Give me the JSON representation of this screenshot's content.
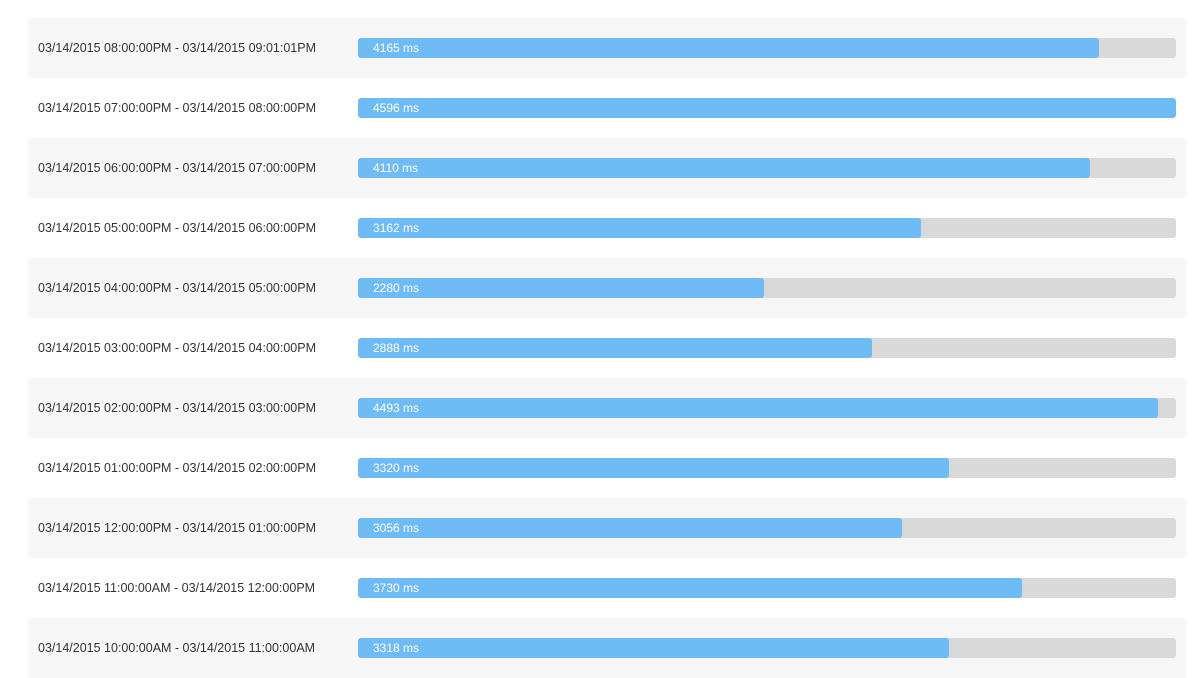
{
  "colors": {
    "bar_fill": "#6fbbf6",
    "bar_track": "#d9d9d9",
    "row_stripe": "#f7f7f7",
    "label_text": "#333333",
    "bar_text": "#ffffff"
  },
  "max_value_ms": 4596,
  "rows": [
    {
      "range": "03/14/2015 08:00:00PM - 03/14/2015 09:01:01PM",
      "value": 4165,
      "value_label": "4165 ms"
    },
    {
      "range": "03/14/2015 07:00:00PM - 03/14/2015 08:00:00PM",
      "value": 4596,
      "value_label": "4596 ms"
    },
    {
      "range": "03/14/2015 06:00:00PM - 03/14/2015 07:00:00PM",
      "value": 4110,
      "value_label": "4110 ms"
    },
    {
      "range": "03/14/2015 05:00:00PM - 03/14/2015 06:00:00PM",
      "value": 3162,
      "value_label": "3162 ms"
    },
    {
      "range": "03/14/2015 04:00:00PM - 03/14/2015 05:00:00PM",
      "value": 2280,
      "value_label": "2280 ms"
    },
    {
      "range": "03/14/2015 03:00:00PM - 03/14/2015 04:00:00PM",
      "value": 2888,
      "value_label": "2888 ms"
    },
    {
      "range": "03/14/2015 02:00:00PM - 03/14/2015 03:00:00PM",
      "value": 4493,
      "value_label": "4493 ms"
    },
    {
      "range": "03/14/2015 01:00:00PM - 03/14/2015 02:00:00PM",
      "value": 3320,
      "value_label": "3320 ms"
    },
    {
      "range": "03/14/2015 12:00:00PM - 03/14/2015 01:00:00PM",
      "value": 3056,
      "value_label": "3056 ms"
    },
    {
      "range": "03/14/2015 11:00:00AM - 03/14/2015 12:00:00PM",
      "value": 3730,
      "value_label": "3730 ms"
    },
    {
      "range": "03/14/2015 10:00:00AM - 03/14/2015 11:00:00AM",
      "value": 3318,
      "value_label": "3318 ms"
    }
  ]
}
